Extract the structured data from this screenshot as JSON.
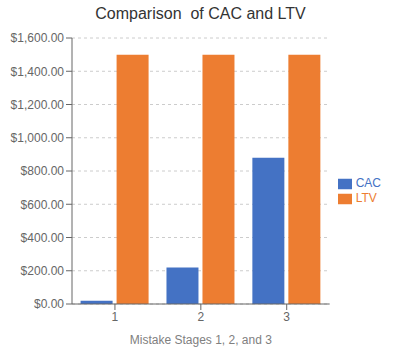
{
  "chart_data": {
    "type": "bar",
    "title": "Comparison  of CAC and LTV",
    "xlabel": "Mistake Stages 1, 2, and 3",
    "categories": [
      "1",
      "2",
      "3"
    ],
    "series": [
      {
        "name": "CAC",
        "color": "#4472C4",
        "values": [
          20,
          220,
          880
        ]
      },
      {
        "name": "LTV",
        "color": "#ED7D31",
        "values": [
          1500,
          1500,
          1500
        ]
      }
    ],
    "ylim": [
      0,
      1600
    ],
    "yticks": [
      {
        "value": 0,
        "label": "$0.00"
      },
      {
        "value": 200,
        "label": "$200.00"
      },
      {
        "value": 400,
        "label": "$400.00"
      },
      {
        "value": 600,
        "label": "$600.00"
      },
      {
        "value": 800,
        "label": "$800.00"
      },
      {
        "value": 1000,
        "label": "$1,000.00"
      },
      {
        "value": 1200,
        "label": "$1,200.00"
      },
      {
        "value": 1400,
        "label": "$1,400.00"
      },
      {
        "value": 1600,
        "label": "$1,600.00"
      }
    ],
    "grid": true,
    "legend": "right"
  }
}
